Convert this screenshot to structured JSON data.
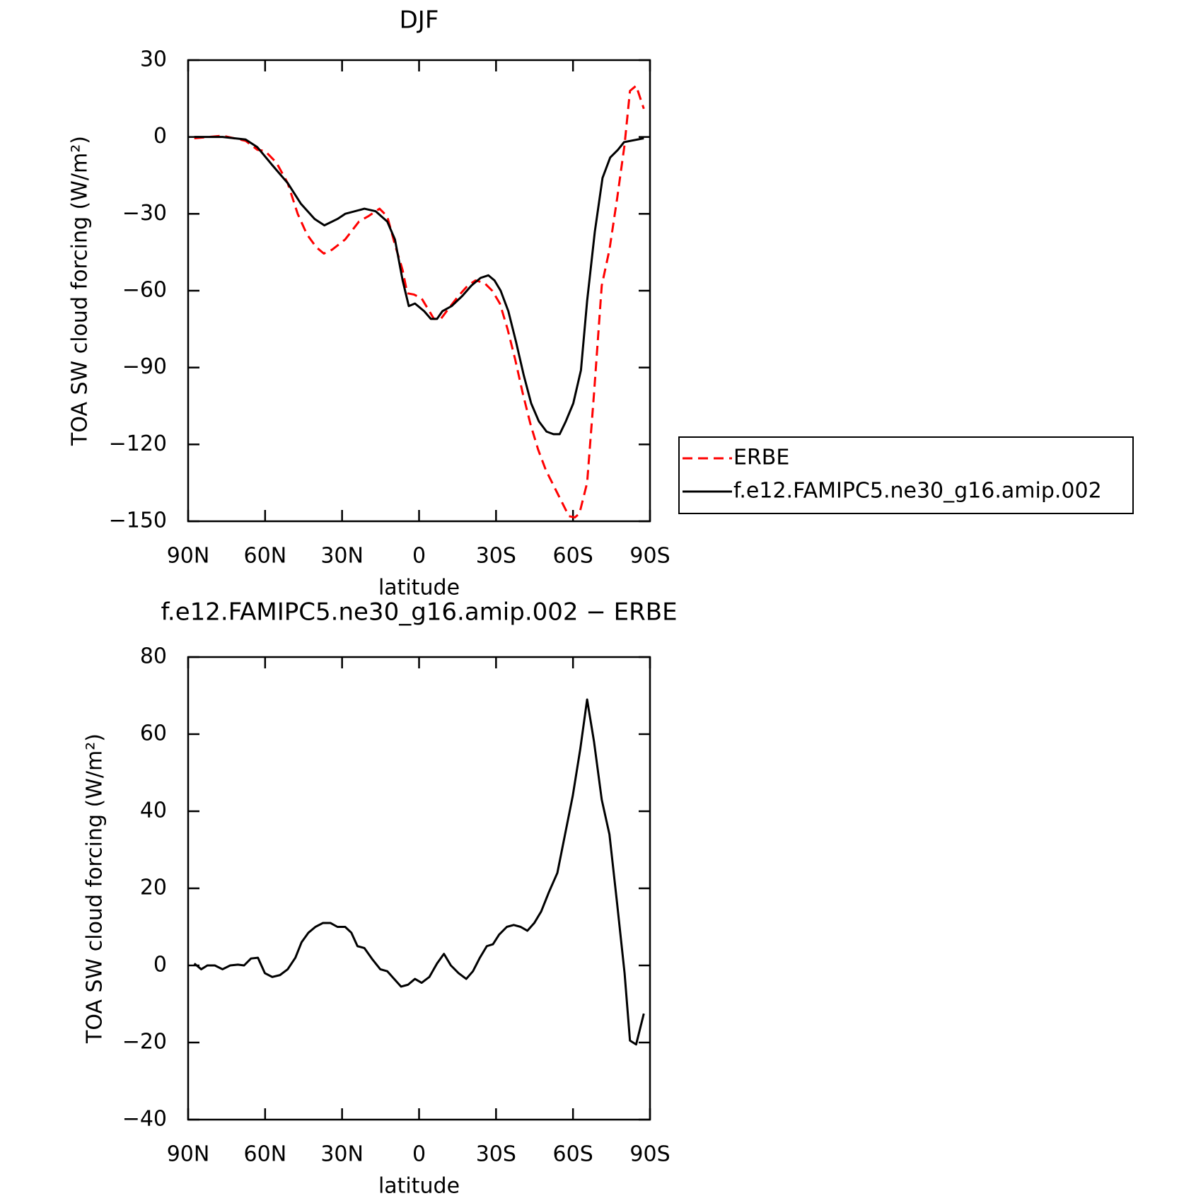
{
  "chart_data": [
    {
      "type": "line",
      "title": "DJF",
      "xlabel": "latitude",
      "ylabel": "TOA SW cloud forcing (W/m²)",
      "xlim": [
        90,
        -90
      ],
      "xticks": [
        {
          "value": 90,
          "label": "90N"
        },
        {
          "value": 60,
          "label": "60N"
        },
        {
          "value": 30,
          "label": "30N"
        },
        0,
        {
          "value": -30,
          "label": "30S"
        },
        {
          "value": -60,
          "label": "60S"
        },
        {
          "value": -90,
          "label": "90S"
        }
      ],
      "ylim": [
        -150,
        30
      ],
      "yticks": [
        30,
        0,
        {
          "value": -30,
          "label": "−30"
        },
        {
          "value": -60,
          "label": "−60"
        },
        {
          "value": -90,
          "label": "−90"
        },
        {
          "value": -120,
          "label": "−120"
        },
        {
          "value": -150,
          "label": "−150"
        }
      ],
      "legend": "outside right",
      "series": [
        {
          "name": "ERBE",
          "color": "#ff0000",
          "style": "dashed",
          "x": [
            87.6,
            76.6,
            67.6,
            63,
            60,
            55.6,
            51.2,
            47.3,
            43.7,
            40.1,
            37.1,
            33.9,
            28.8,
            23.4,
            19.9,
            15.4,
            12.4,
            9.4,
            6.4,
            4.6,
            2,
            -1,
            -3.4,
            -5.8,
            -8.5,
            -11.5,
            -15.4,
            -19,
            -22,
            -25.5,
            -28.5,
            -31.5,
            -34.5,
            -37.5,
            -40.4,
            -43.4,
            -46.4,
            -49.4,
            -52.4,
            -55.4,
            -58.4,
            -60.7,
            -62.5,
            -65.5,
            -68.2,
            -71.2,
            -74.2,
            -77.2,
            -80.1,
            -82.2,
            -84.6,
            -87.6
          ],
          "values": [
            -0.5,
            0.5,
            -1.5,
            -5,
            -5.5,
            -10,
            -18,
            -30,
            -38,
            -43,
            -45.5,
            -44,
            -40,
            -33,
            -31,
            -28,
            -31,
            -42,
            -52,
            -61,
            -61.5,
            -63,
            -67,
            -71,
            -71,
            -67,
            -62,
            -58,
            -56,
            -57,
            -60,
            -65,
            -75,
            -87,
            -100,
            -112,
            -122,
            -130,
            -136,
            -142,
            -148,
            -148.5,
            -147,
            -135,
            -100,
            -58,
            -44,
            -24,
            -3,
            18,
            20,
            11
          ]
        },
        {
          "name": "f.e12.FAMIPC5.ne30_g16.amip.002",
          "color": "#000000",
          "style": "solid",
          "x": [
            87.6,
            76.6,
            67.6,
            63,
            57.2,
            51.2,
            46.1,
            40.7,
            36.9,
            31.8,
            28.8,
            21.3,
            16.9,
            12.4,
            9.4,
            6.4,
            4,
            1.6,
            -2,
            -4.6,
            -7,
            -9.1,
            -12.7,
            -16.9,
            -20.4,
            -24,
            -27,
            -29.4,
            -31.8,
            -34.8,
            -37.8,
            -40.8,
            -43.7,
            -46.7,
            -49.7,
            -52.4,
            -54.8,
            -57.2,
            -60.1,
            -63.1,
            -65.5,
            -68.5,
            -71.5,
            -74.5,
            -77.5,
            -79.9,
            -87.6
          ],
          "values": [
            0,
            0,
            -1,
            -4,
            -11,
            -18,
            -26,
            -32,
            -34.5,
            -32,
            -30,
            -28,
            -29,
            -33,
            -40,
            -56,
            -66,
            -65,
            -68,
            -71,
            -71,
            -68,
            -66,
            -62,
            -58,
            -55,
            -54,
            -56,
            -60,
            -68,
            -80,
            -93,
            -104,
            -111,
            -115,
            -116,
            -116,
            -111,
            -104,
            -91,
            -64,
            -37,
            -16,
            -8,
            -5,
            -2,
            -0.5
          ]
        }
      ]
    },
    {
      "type": "line",
      "title": "f.e12.FAMIPC5.ne30_g16.amip.002 − ERBE",
      "xlabel": "latitude",
      "ylabel": "TOA SW cloud forcing (W/m²)",
      "xlim": [
        90,
        -90
      ],
      "xticks": [
        {
          "value": 90,
          "label": "90N"
        },
        {
          "value": 60,
          "label": "60N"
        },
        {
          "value": 30,
          "label": "30N"
        },
        0,
        {
          "value": -30,
          "label": "30S"
        },
        {
          "value": -60,
          "label": "60S"
        },
        {
          "value": -90,
          "label": "90S"
        }
      ],
      "ylim": [
        -40,
        80
      ],
      "yticks": [
        80,
        60,
        40,
        20,
        0,
        {
          "value": -20,
          "label": "−20"
        },
        {
          "value": -40,
          "label": "−40"
        }
      ],
      "series": [
        {
          "color": "#000000",
          "style": "solid",
          "x": [
            87.6,
            84.9,
            82.5,
            79.6,
            76.6,
            73.6,
            70.6,
            68.2,
            65.5,
            62.8,
            60.1,
            57.2,
            54.2,
            51.2,
            48.2,
            45.8,
            43.1,
            40.4,
            37.5,
            34.5,
            31.8,
            28.8,
            26.4,
            24,
            21.3,
            18.1,
            15.1,
            12.4,
            9.7,
            7,
            4.3,
            1.6,
            -1,
            -4,
            -7,
            -9.7,
            -12.4,
            -15.4,
            -18.4,
            -21,
            -23.7,
            -26.4,
            -28.8,
            -31.2,
            -34.2,
            -36.9,
            -39.6,
            -42.2,
            -44.9,
            -47.6,
            -50.6,
            -53.9,
            -56.9,
            -59.9,
            -62.8,
            -65.5,
            -68.2,
            -71.2,
            -74.2,
            -77.2,
            -80.1,
            -82.2,
            -84.6,
            -87.6
          ],
          "values": [
            0.5,
            -1,
            0,
            0,
            -1,
            0,
            0.2,
            0,
            1.8,
            2,
            -2,
            -3,
            -2.5,
            -1,
            2,
            6,
            8.5,
            10,
            11,
            11,
            10,
            10,
            8.5,
            5,
            4.5,
            1.5,
            -1,
            -1.5,
            -3.5,
            -5.5,
            -5,
            -3.5,
            -4.5,
            -3,
            0.5,
            3,
            0,
            -2,
            -3.5,
            -1.5,
            2,
            5,
            5.5,
            8,
            10,
            10.5,
            10,
            9,
            11,
            14,
            19,
            24,
            34,
            44,
            56,
            69,
            58,
            43,
            34,
            16,
            -2,
            -19.5,
            -20.5,
            -12.5
          ]
        }
      ]
    }
  ]
}
